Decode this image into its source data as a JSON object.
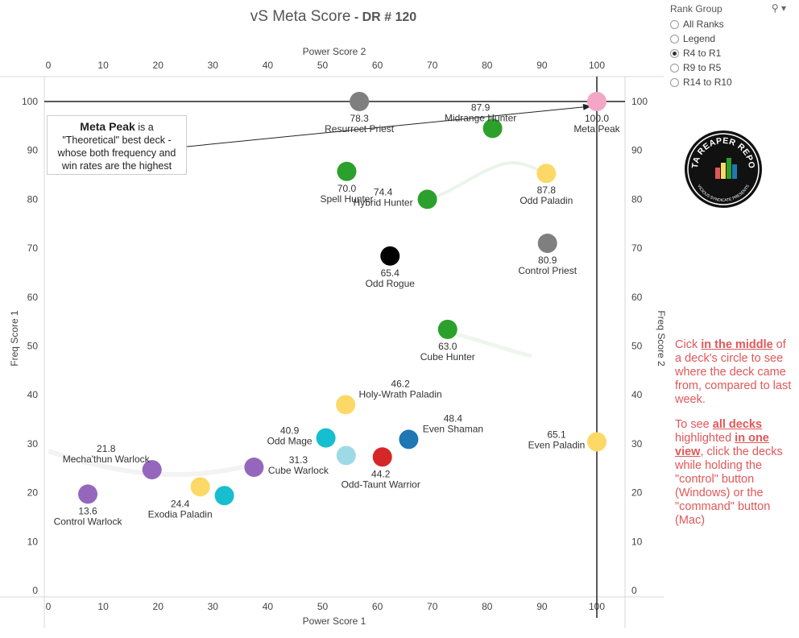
{
  "title": {
    "main": "vS Meta Score",
    "sub": " - DR # 120"
  },
  "rank_group": {
    "title": "Rank Group",
    "options": [
      "All Ranks",
      "Legend",
      "R4 to R1",
      "R9 to R5",
      "R14 to R10"
    ],
    "selected_index": 2
  },
  "callout": {
    "bold": "Meta Peak",
    "line1": " is a",
    "line2": "\"Theoretical\" best deck -",
    "line3": "whose both frequency and",
    "line4": "win rates are the highest"
  },
  "instructions": {
    "p1_a": "Cick ",
    "p1_em": "in the middle",
    "p1_b": " of a deck's circle to see where the deck came from, compared to last week.",
    "p2_a": "To see ",
    "p2_em1": "all decks",
    "p2_b": " highlighted ",
    "p2_em2": "in one view",
    "p2_c": ", click the decks while holding the \"control\" button (Windows) or the \"command\" button (Mac)"
  },
  "logo": {
    "text": "DATA REAPER REPORT",
    "subtext": "VICIOUS SYNDICATE PRESENTS"
  },
  "chart_data": {
    "type": "scatter",
    "xlabel": "Power Score 1",
    "xlabel_top": "Power Score 2",
    "ylabel": "Freq Score 1",
    "ylabel_right": "Freq Score 2",
    "xlim": [
      0,
      100
    ],
    "ylim": [
      0,
      100
    ],
    "x_ticks": [
      0,
      10,
      20,
      30,
      40,
      50,
      60,
      70,
      80,
      90,
      100
    ],
    "y_ticks": [
      0,
      10,
      20,
      30,
      40,
      50,
      60,
      70,
      80,
      90,
      100
    ],
    "reference_lines": {
      "x": 100,
      "y": 100
    },
    "colors": {
      "priest": "#7f7f7f",
      "meta": "#f4a6c6",
      "hunter": "#2ca02c",
      "paladin": "#fcd966",
      "rogue": "#000000",
      "warlock": "#9467bd",
      "mage": "#17becf",
      "mage_light": "#9edae5",
      "warrior": "#d62728",
      "shaman": "#1f77b4"
    },
    "points": [
      {
        "name": "Resurrect Priest",
        "value": "78.3",
        "x": 56.7,
        "y": 100,
        "color": "#7f7f7f"
      },
      {
        "name": "Meta Peak",
        "value": "100.0",
        "x": 100,
        "y": 100,
        "color": "#f4a6c6"
      },
      {
        "name": "Midrange Hunter",
        "value": "87.9",
        "x": 81.0,
        "y": 94.5,
        "color": "#2ca02c"
      },
      {
        "name": "Spell Hunter",
        "value": "70.0",
        "x": 54.4,
        "y": 85.7,
        "color": "#2ca02c"
      },
      {
        "name": "Hybrid Hunter",
        "value": "74.4",
        "x": 69.1,
        "y": 80.0,
        "color": "#2ca02c"
      },
      {
        "name": "Odd Paladin",
        "value": "87.8",
        "x": 90.8,
        "y": 85.3,
        "color": "#fcd966"
      },
      {
        "name": "Control Priest",
        "value": "80.9",
        "x": 91.0,
        "y": 71.0,
        "color": "#7f7f7f"
      },
      {
        "name": "Odd Rogue",
        "value": "65.4",
        "x": 62.3,
        "y": 68.4,
        "color": "#000000"
      },
      {
        "name": "Cube Hunter",
        "value": "63.0",
        "x": 72.8,
        "y": 53.4,
        "color": "#2ca02c"
      },
      {
        "name": "Holy-Wrath Paladin",
        "value": "46.2",
        "x": 54.2,
        "y": 38.0,
        "color": "#fcd966"
      },
      {
        "name": "Odd Mage",
        "value": "40.9",
        "x": 50.6,
        "y": 31.2,
        "color": "#17becf"
      },
      {
        "name": "Even Shaman",
        "value": "48.4",
        "x": 65.7,
        "y": 30.9,
        "color": "#1f77b4"
      },
      {
        "name": "Even Paladin",
        "value": "65.1",
        "x": 100,
        "y": 30.4,
        "color": "#fcd966"
      },
      {
        "name": "Cube Warlock",
        "value": "31.3",
        "x": 37.5,
        "y": 25.2,
        "color": "#9467bd"
      },
      {
        "name": "Odd-Taunt Warrior",
        "value": "44.2",
        "x": 60.9,
        "y": 27.3,
        "color": "#d62728"
      },
      {
        "name": "",
        "value": "",
        "x": 54.3,
        "y": 27.6,
        "color": "#9edae5"
      },
      {
        "name": "Mecha'thun Warlock",
        "value": "21.8",
        "x": 18.9,
        "y": 24.7,
        "color": "#9467bd"
      },
      {
        "name": "Exodia Paladin",
        "value": "24.4",
        "x": 27.7,
        "y": 21.2,
        "color": "#fcd966"
      },
      {
        "name": "",
        "value": "",
        "x": 32.1,
        "y": 19.4,
        "color": "#17becf"
      },
      {
        "name": "Control Warlock",
        "value": "13.6",
        "x": 7.2,
        "y": 19.7,
        "color": "#9467bd"
      }
    ]
  }
}
